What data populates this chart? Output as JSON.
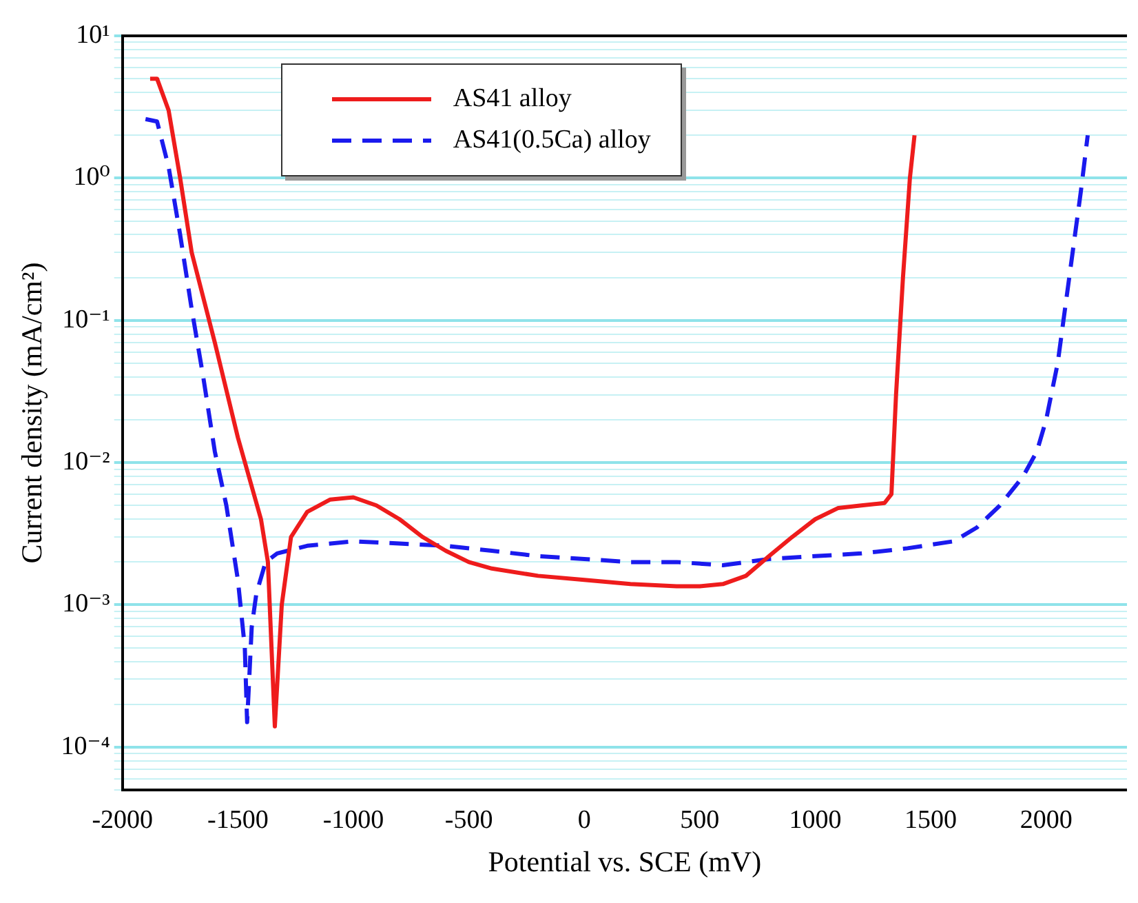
{
  "chart_data": {
    "type": "line",
    "xlabel": "Potential vs. SCE (mV)",
    "ylabel": "Current density (mA/cm²)",
    "log": "y",
    "grid": "y",
    "legend": "top left",
    "marker": "none",
    "xlim": [
      -2000,
      2350
    ],
    "xticks": [
      -2000,
      -1500,
      -1000,
      -500,
      0,
      500,
      1000,
      1500,
      2000
    ],
    "ylim": [
      5e-05,
      10
    ],
    "yticks": [
      {
        "value": 5e-05,
        "label": null
      },
      {
        "value": 6e-05,
        "label": null
      },
      {
        "value": 7e-05,
        "label": null
      },
      {
        "value": 8e-05,
        "label": null
      },
      {
        "value": 9e-05,
        "label": null
      },
      {
        "value": 0.0001,
        "label": "10⁻⁴"
      },
      {
        "value": 0.0002,
        "label": null
      },
      {
        "value": 0.0003,
        "label": null
      },
      {
        "value": 0.0004,
        "label": null
      },
      {
        "value": 0.0005,
        "label": null
      },
      {
        "value": 0.0006,
        "label": null
      },
      {
        "value": 0.0007,
        "label": null
      },
      {
        "value": 0.0008,
        "label": null
      },
      {
        "value": 0.0009,
        "label": null
      },
      {
        "value": 0.001,
        "label": "10⁻³"
      },
      {
        "value": 0.002,
        "label": null
      },
      {
        "value": 0.003,
        "label": null
      },
      {
        "value": 0.004,
        "label": null
      },
      {
        "value": 0.005,
        "label": null
      },
      {
        "value": 0.006,
        "label": null
      },
      {
        "value": 0.007,
        "label": null
      },
      {
        "value": 0.008,
        "label": null
      },
      {
        "value": 0.009,
        "label": null
      },
      {
        "value": 0.01,
        "label": "10⁻²"
      },
      {
        "value": 0.02,
        "label": null
      },
      {
        "value": 0.03,
        "label": null
      },
      {
        "value": 0.04,
        "label": null
      },
      {
        "value": 0.05,
        "label": null
      },
      {
        "value": 0.06,
        "label": null
      },
      {
        "value": 0.07,
        "label": null
      },
      {
        "value": 0.08,
        "label": null
      },
      {
        "value": 0.09,
        "label": null
      },
      {
        "value": 0.1,
        "label": "10⁻¹"
      },
      {
        "value": 0.2,
        "label": null
      },
      {
        "value": 0.3,
        "label": null
      },
      {
        "value": 0.4,
        "label": null
      },
      {
        "value": 0.5,
        "label": null
      },
      {
        "value": 0.6,
        "label": null
      },
      {
        "value": 0.7,
        "label": null
      },
      {
        "value": 0.8,
        "label": null
      },
      {
        "value": 0.9,
        "label": null
      },
      {
        "value": 1,
        "label": "10⁰"
      },
      {
        "value": 2,
        "label": null
      },
      {
        "value": 3,
        "label": null
      },
      {
        "value": 4,
        "label": null
      },
      {
        "value": 5,
        "label": null
      },
      {
        "value": 6,
        "label": null
      },
      {
        "value": 7,
        "label": null
      },
      {
        "value": 8,
        "label": null
      },
      {
        "value": 9,
        "label": null
      },
      {
        "value": 10,
        "label": "10¹"
      }
    ],
    "series": [
      {
        "name": "AS41 alloy",
        "color": "#ee1c1c",
        "line_style": "solid",
        "x": [
          -1880,
          -1850,
          -1800,
          -1750,
          -1700,
          -1600,
          -1500,
          -1400,
          -1370,
          -1340,
          -1310,
          -1270,
          -1200,
          -1100,
          -1000,
          -900,
          -800,
          -700,
          -600,
          -500,
          -400,
          -200,
          0,
          200,
          400,
          500,
          600,
          700,
          800,
          900,
          1000,
          1100,
          1200,
          1300,
          1330,
          1350,
          1380,
          1410,
          1430
        ],
        "values": [
          5,
          5,
          3,
          1,
          0.3,
          0.07,
          0.015,
          0.004,
          0.002,
          0.00014,
          0.001,
          0.003,
          0.0045,
          0.0055,
          0.0057,
          0.005,
          0.004,
          0.003,
          0.0024,
          0.002,
          0.0018,
          0.0016,
          0.0015,
          0.0014,
          0.00135,
          0.00135,
          0.0014,
          0.0016,
          0.0022,
          0.003,
          0.004,
          0.0048,
          0.005,
          0.0052,
          0.006,
          0.03,
          0.2,
          1,
          2
        ]
      },
      {
        "name": "AS41(0.5Ca) alloy",
        "color": "#1a1aee",
        "line_style": "dashed",
        "x": [
          -1900,
          -1850,
          -1800,
          -1750,
          -1700,
          -1650,
          -1600,
          -1550,
          -1500,
          -1470,
          -1460,
          -1440,
          -1420,
          -1380,
          -1330,
          -1200,
          -1000,
          -800,
          -600,
          -400,
          -200,
          0,
          200,
          400,
          600,
          800,
          1000,
          1200,
          1400,
          1600,
          1700,
          1800,
          1900,
          1960,
          2000,
          2050,
          2100,
          2150,
          2180
        ],
        "values": [
          2.6,
          2.5,
          1.2,
          0.4,
          0.12,
          0.04,
          0.012,
          0.005,
          0.0015,
          0.0005,
          0.00015,
          0.0007,
          0.0012,
          0.002,
          0.0023,
          0.0026,
          0.0028,
          0.0027,
          0.0026,
          0.0024,
          0.0022,
          0.0021,
          0.002,
          0.002,
          0.0019,
          0.0021,
          0.0022,
          0.0023,
          0.0025,
          0.0028,
          0.0035,
          0.005,
          0.008,
          0.012,
          0.02,
          0.05,
          0.2,
          0.8,
          2
        ]
      }
    ]
  }
}
